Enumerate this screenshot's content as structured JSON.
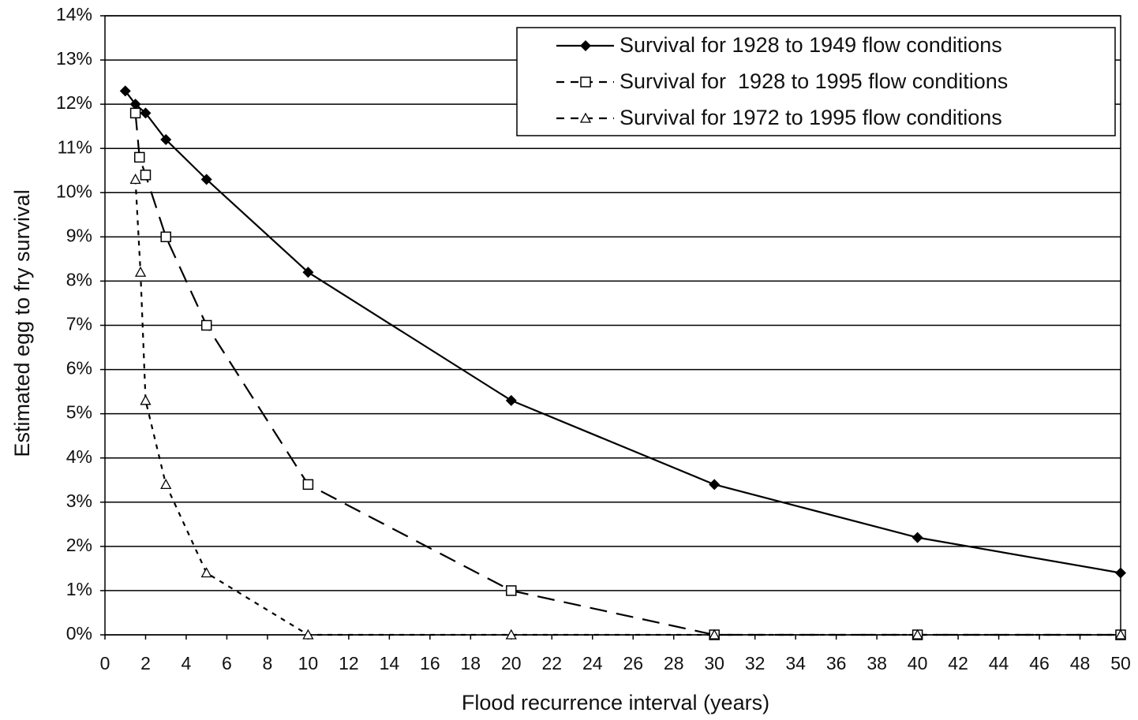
{
  "chart_data": {
    "type": "line",
    "xlabel": "Flood recurrence interval (years)",
    "ylabel": "Estimated egg to fry survival",
    "xlim": [
      0,
      50
    ],
    "xticks": [
      0,
      2,
      4,
      6,
      8,
      10,
      12,
      14,
      16,
      18,
      20,
      22,
      24,
      26,
      28,
      30,
      32,
      34,
      36,
      38,
      40,
      42,
      44,
      46,
      48,
      50
    ],
    "ylim": [
      0,
      14
    ],
    "yticks": [
      {
        "value": 0,
        "label": "0%"
      },
      {
        "value": 1,
        "label": "1%"
      },
      {
        "value": 2,
        "label": "2%"
      },
      {
        "value": 3,
        "label": "3%"
      },
      {
        "value": 4,
        "label": "4%"
      },
      {
        "value": 5,
        "label": "5%"
      },
      {
        "value": 6,
        "label": "6%"
      },
      {
        "value": 7,
        "label": "7%"
      },
      {
        "value": 8,
        "label": "8%"
      },
      {
        "value": 9,
        "label": "9%"
      },
      {
        "value": 10,
        "label": "10%"
      },
      {
        "value": 11,
        "label": "11%"
      },
      {
        "value": 12,
        "label": "12%"
      },
      {
        "value": 13,
        "label": "13%"
      },
      {
        "value": 14,
        "label": "14%"
      }
    ],
    "grid": true,
    "legend": "upper right",
    "series": [
      {
        "name": "Survival for 1928 to 1949 flow conditions",
        "color": "#000000",
        "line_style": "solid",
        "marker": "diamond",
        "x": [
          1,
          1.5,
          2,
          3,
          5,
          10,
          20,
          30,
          40,
          50
        ],
        "values": [
          12.3,
          12.0,
          11.8,
          11.2,
          10.3,
          8.2,
          5.3,
          3.4,
          2.2,
          1.4
        ]
      },
      {
        "name": "Survival for  1928 to 1995 flow conditions",
        "color": "#000000",
        "line_style": "dashed",
        "marker": "square",
        "x": [
          1.5,
          1.7,
          2,
          3,
          5,
          10,
          20,
          30,
          40,
          50
        ],
        "values": [
          11.8,
          10.8,
          10.4,
          9.0,
          7.0,
          3.4,
          1.0,
          0,
          0,
          0
        ]
      },
      {
        "name": "Survival for 1972 to 1995 flow conditions",
        "color": "#000000",
        "line_style": "dotted",
        "marker": "triangle",
        "x": [
          1.5,
          1.75,
          2,
          3,
          5,
          10,
          20,
          30,
          40,
          50
        ],
        "values": [
          10.3,
          8.2,
          5.3,
          3.4,
          1.4,
          0,
          0,
          0,
          0,
          0
        ]
      }
    ]
  }
}
